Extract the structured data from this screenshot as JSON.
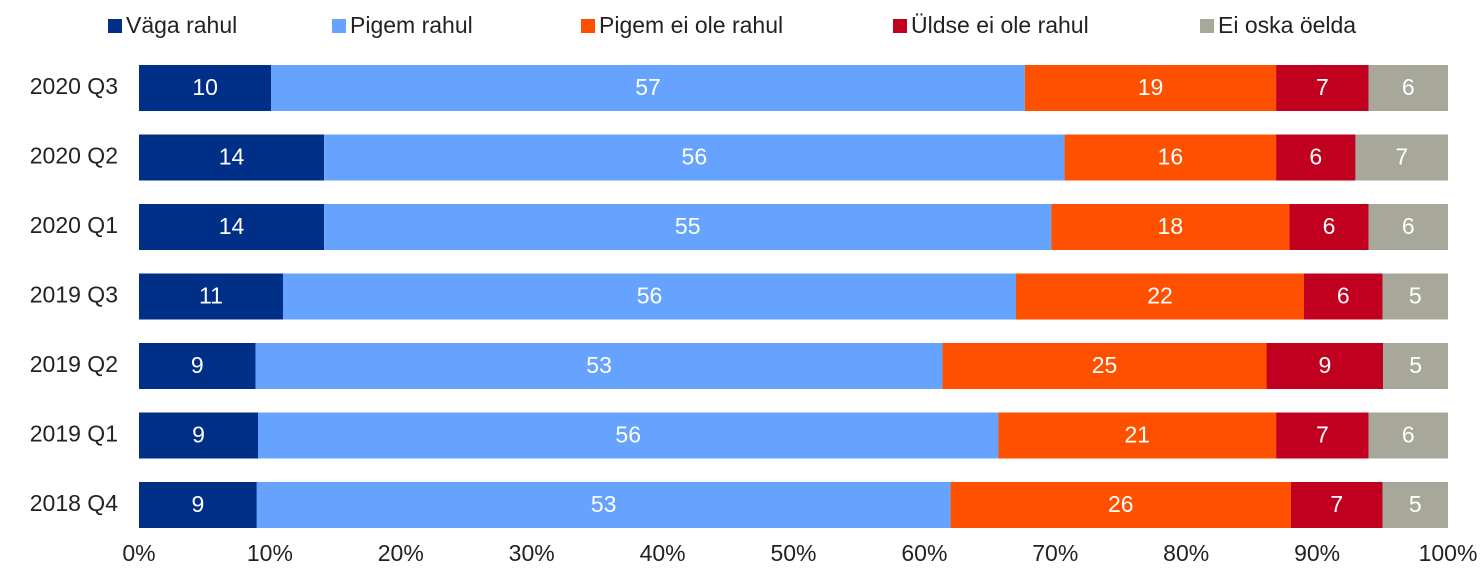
{
  "chart_data": {
    "type": "bar",
    "orientation": "horizontal",
    "stack": "percent",
    "categories": [
      "2020 Q3",
      "2020 Q2",
      "2020 Q1",
      "2019 Q3",
      "2019 Q2",
      "2019 Q1",
      "2018 Q4"
    ],
    "series": [
      {
        "name": "Väga rahul",
        "color": "#002f87",
        "values": [
          10,
          14,
          14,
          11,
          9,
          9,
          9
        ]
      },
      {
        "name": "Pigem rahul",
        "color": "#66a3ff",
        "values": [
          57,
          56,
          55,
          56,
          53,
          56,
          53
        ]
      },
      {
        "name": "Pigem ei ole rahul",
        "color": "#ff5000",
        "values": [
          19,
          16,
          18,
          22,
          25,
          21,
          26
        ]
      },
      {
        "name": "Üldse ei ole rahul",
        "color": "#c0001e",
        "values": [
          7,
          6,
          6,
          6,
          9,
          7,
          7
        ]
      },
      {
        "name": "Ei oska öelda",
        "color": "#a8a89a",
        "values": [
          6,
          7,
          6,
          5,
          5,
          6,
          5
        ]
      }
    ],
    "xlim": [
      0,
      100
    ],
    "xticks": [
      {
        "value": 0,
        "label": "0%"
      },
      {
        "value": 10,
        "label": "10%"
      },
      {
        "value": 20,
        "label": "20%"
      },
      {
        "value": 30,
        "label": "30%"
      },
      {
        "value": 40,
        "label": "40%"
      },
      {
        "value": 50,
        "label": "50%"
      },
      {
        "value": 60,
        "label": "60%"
      },
      {
        "value": 70,
        "label": "70%"
      },
      {
        "value": 80,
        "label": "80%"
      },
      {
        "value": 90,
        "label": "90%"
      },
      {
        "value": 100,
        "label": "100%"
      }
    ],
    "legend": "top"
  }
}
